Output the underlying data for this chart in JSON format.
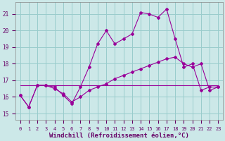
{
  "background_color": "#cce8e8",
  "line_color": "#990099",
  "grid_color": "#99cccc",
  "xlabel": "Windchill (Refroidissement éolien,°C)",
  "yticks": [
    15,
    16,
    17,
    18,
    19,
    20,
    21
  ],
  "xticks": [
    0,
    1,
    2,
    3,
    4,
    5,
    6,
    7,
    8,
    9,
    10,
    11,
    12,
    13,
    14,
    15,
    16,
    17,
    18,
    19,
    20,
    21,
    22,
    23
  ],
  "xlim": [
    -0.5,
    23.5
  ],
  "ylim": [
    14.6,
    21.7
  ],
  "line1_x": [
    0,
    1,
    2,
    3,
    4,
    5,
    6,
    7,
    8,
    9,
    10,
    11,
    12,
    13,
    14,
    15,
    16,
    17,
    18,
    19,
    20,
    21,
    22,
    23
  ],
  "line1_y": [
    16.1,
    15.4,
    16.7,
    16.7,
    16.6,
    16.1,
    15.6,
    16.6,
    17.8,
    19.2,
    20.0,
    19.2,
    19.5,
    19.8,
    21.1,
    21.0,
    20.8,
    21.3,
    19.5,
    17.8,
    18.0,
    16.4,
    16.6,
    16.6
  ],
  "line2_x": [
    0,
    1,
    2,
    3,
    4,
    5,
    6,
    7,
    8,
    9,
    10,
    11,
    12,
    13,
    14,
    15,
    16,
    17,
    18,
    19,
    20,
    21,
    22,
    23
  ],
  "line2_y": [
    16.1,
    15.4,
    16.7,
    16.7,
    16.5,
    16.2,
    15.7,
    16.0,
    16.4,
    16.6,
    16.8,
    17.1,
    17.3,
    17.5,
    17.7,
    17.9,
    18.1,
    18.3,
    18.4,
    18.0,
    17.8,
    18.0,
    16.4,
    16.6
  ],
  "line3_x": [
    0,
    23
  ],
  "line3_y": [
    16.7,
    16.7
  ],
  "tick_fontsize": 6,
  "xlabel_fontsize": 6.5
}
